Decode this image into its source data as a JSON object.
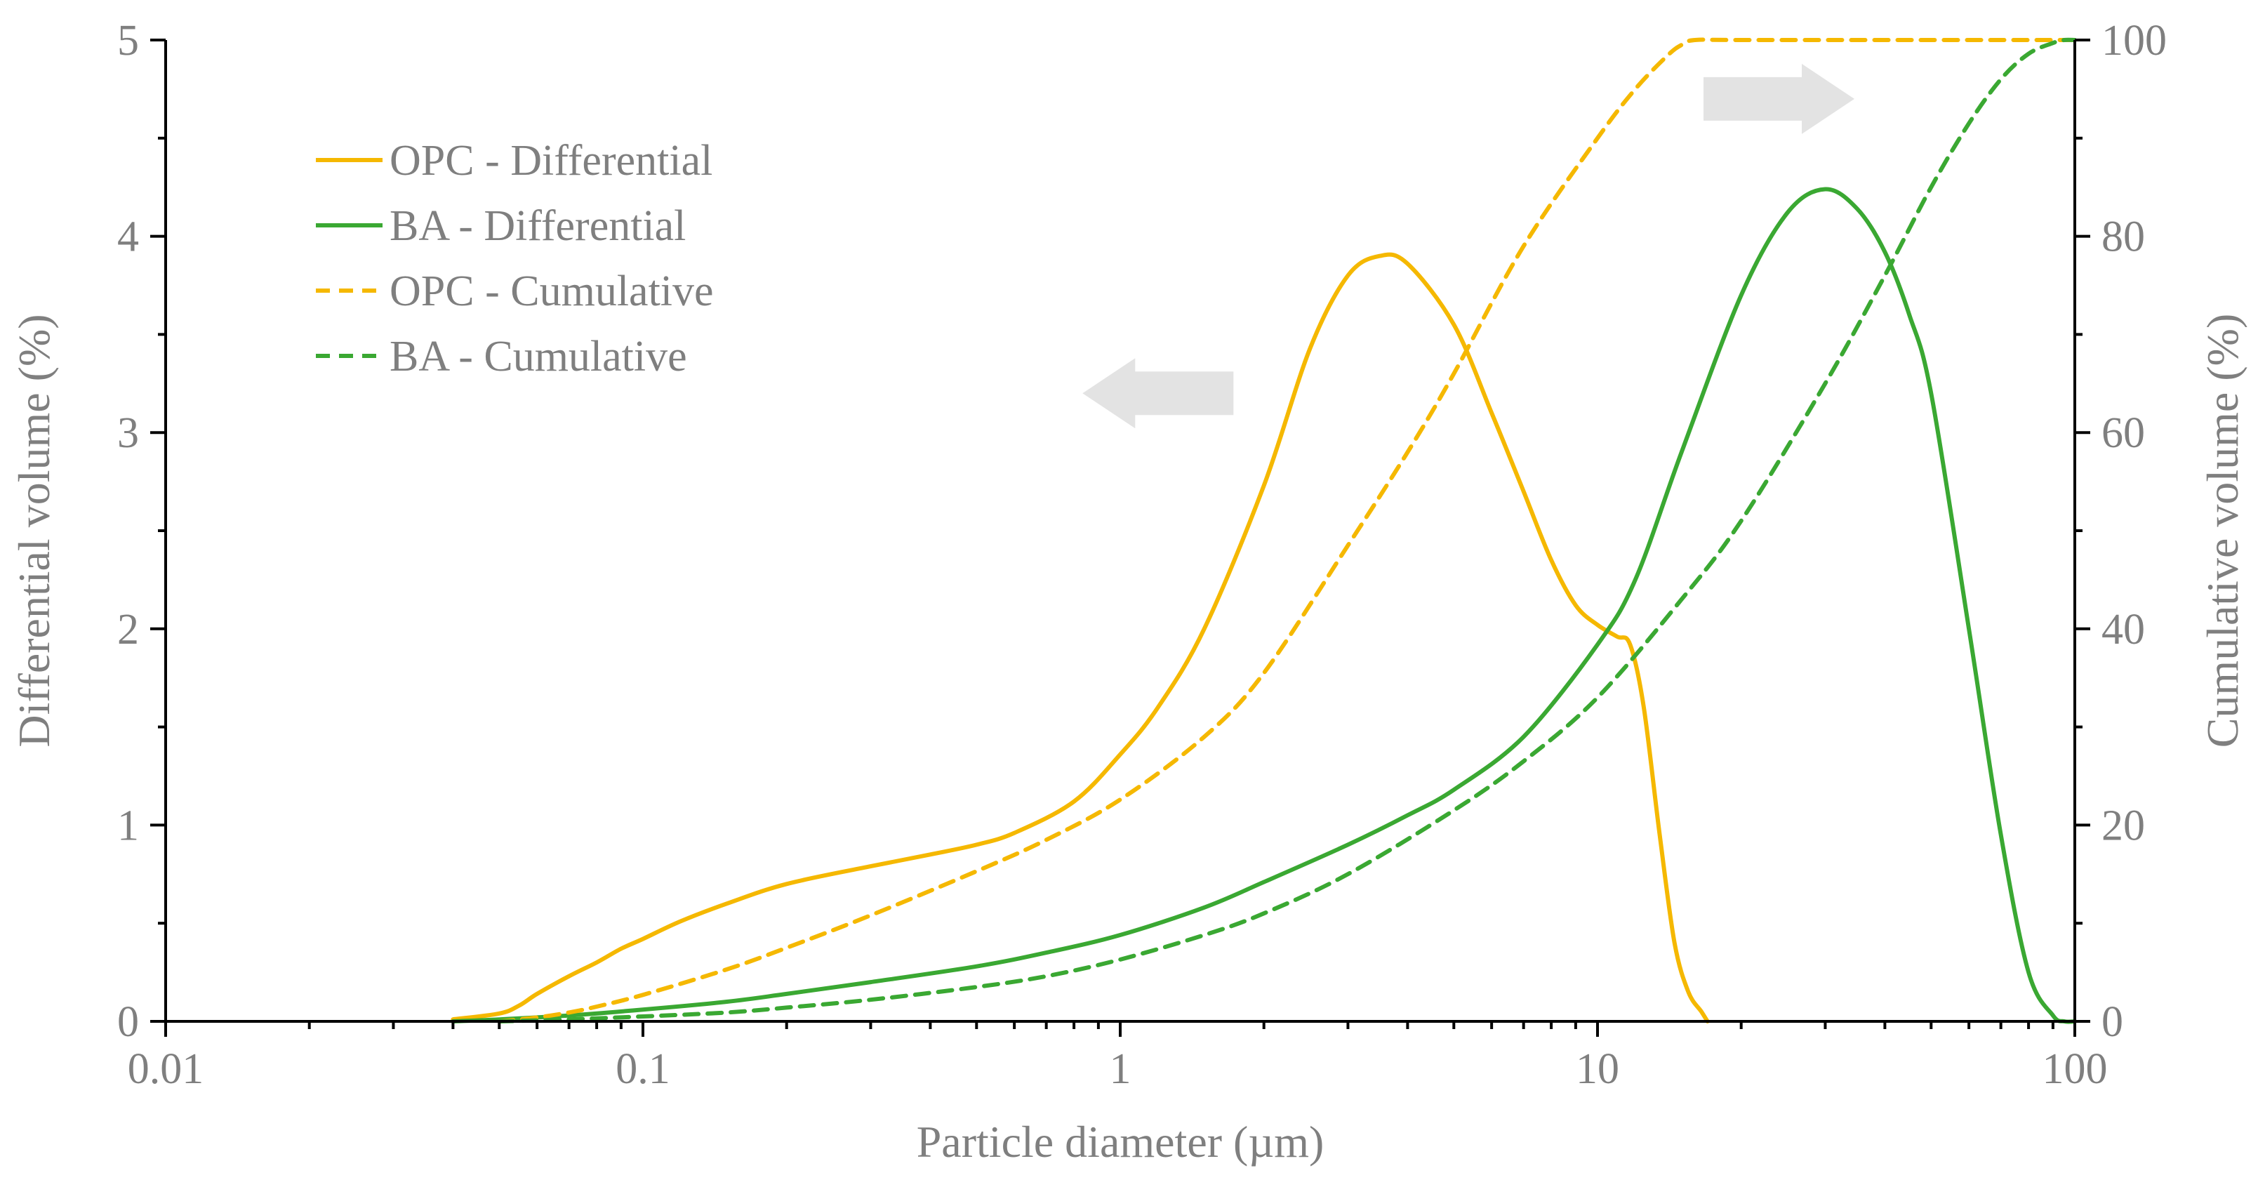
{
  "chart_data": {
    "type": "line",
    "xscale": "log",
    "xlabel": "Particle diameter (µm)",
    "ylabel": "Differential volume (%)",
    "y2label": "Cumulative volume (%)",
    "xlim": [
      0.01,
      100
    ],
    "ylim": [
      0,
      5
    ],
    "y2lim": [
      0,
      100
    ],
    "xticks": [
      0.01,
      0.1,
      1,
      10,
      100
    ],
    "xtick_labels": [
      "0.01",
      "0.1",
      "1",
      "10",
      "100"
    ],
    "yticks": [
      0,
      1,
      2,
      3,
      4,
      5
    ],
    "ytick_labels": [
      "0",
      "1",
      "2",
      "3",
      "4",
      "5"
    ],
    "y2ticks": [
      0,
      20,
      40,
      60,
      80,
      100
    ],
    "y2tick_labels": [
      "0",
      "20",
      "40",
      "60",
      "80",
      "100"
    ],
    "legend_position": "top-left",
    "colors": {
      "opc": "#f5b800",
      "ba": "#3aa832",
      "axis": "#000000",
      "text": "#7f7f7f",
      "arrow": "#e3e3e3"
    },
    "annotations": [
      {
        "type": "arrow",
        "direction": "left",
        "meaning": "differential curves read on left axis",
        "x": 1.2,
        "y": 3.2
      },
      {
        "type": "arrow",
        "direction": "right",
        "meaning": "cumulative curves read on right axis",
        "x": 24,
        "y": 4.7
      }
    ],
    "series": [
      {
        "name": "OPC - Differential",
        "axis": "left",
        "style": "solid",
        "color": "#f5b800",
        "x": [
          0.04,
          0.05,
          0.055,
          0.06,
          0.07,
          0.08,
          0.09,
          0.1,
          0.12,
          0.15,
          0.2,
          0.3,
          0.4,
          0.5,
          0.6,
          0.8,
          1.0,
          1.2,
          1.5,
          2.0,
          2.5,
          3.0,
          3.5,
          4.0,
          5.0,
          6.0,
          7.0,
          8.0,
          9.0,
          10.0,
          11.0,
          11.7,
          12.5,
          13.5,
          14.5,
          15.5,
          16.5,
          17.0
        ],
        "values": [
          0.01,
          0.04,
          0.08,
          0.14,
          0.23,
          0.3,
          0.37,
          0.42,
          0.51,
          0.6,
          0.7,
          0.79,
          0.85,
          0.9,
          0.96,
          1.12,
          1.36,
          1.6,
          2.0,
          2.73,
          3.43,
          3.8,
          3.9,
          3.86,
          3.55,
          3.1,
          2.7,
          2.35,
          2.12,
          2.02,
          1.96,
          1.92,
          1.6,
          0.95,
          0.4,
          0.15,
          0.05,
          0.0
        ]
      },
      {
        "name": "BA - Differential",
        "axis": "left",
        "style": "solid",
        "color": "#3aa832",
        "x": [
          0.04,
          0.05,
          0.07,
          0.1,
          0.15,
          0.2,
          0.3,
          0.5,
          0.7,
          1.0,
          1.5,
          2.0,
          3.0,
          4.0,
          5.0,
          7.0,
          10.0,
          12.0,
          15.0,
          20.0,
          25.0,
          30.0,
          35.0,
          40.0,
          45.0,
          50.0,
          60.0,
          70.0,
          80.0,
          90.0,
          95.0,
          100.0
        ],
        "values": [
          0.0,
          0.01,
          0.03,
          0.06,
          0.1,
          0.14,
          0.2,
          0.28,
          0.35,
          0.44,
          0.58,
          0.71,
          0.9,
          1.05,
          1.18,
          1.45,
          1.92,
          2.25,
          2.9,
          3.7,
          4.12,
          4.24,
          4.14,
          3.92,
          3.6,
          3.2,
          2.0,
          0.95,
          0.25,
          0.03,
          0.0,
          0.0
        ]
      },
      {
        "name": "OPC - Cumulative",
        "axis": "right",
        "style": "dashed",
        "color": "#f5b800",
        "x": [
          0.05,
          0.06,
          0.07,
          0.08,
          0.1,
          0.15,
          0.2,
          0.3,
          0.5,
          0.7,
          1.0,
          1.5,
          2.0,
          3.0,
          4.0,
          5.0,
          7.0,
          10.0,
          12.0,
          14.0,
          15.0,
          16.0,
          20.0,
          50.0,
          100.0
        ],
        "values": [
          0.0,
          0.4,
          0.9,
          1.5,
          2.7,
          5.3,
          7.5,
          10.8,
          15.3,
          18.5,
          22.6,
          29.0,
          35.5,
          48.5,
          58.0,
          66.0,
          79.0,
          90.0,
          95.0,
          98.4,
          99.5,
          100.0,
          100.0,
          100.0,
          100.0
        ]
      },
      {
        "name": "BA - Cumulative",
        "axis": "right",
        "style": "dashed",
        "color": "#3aa832",
        "x": [
          0.05,
          0.07,
          0.1,
          0.15,
          0.2,
          0.3,
          0.5,
          0.7,
          1.0,
          1.5,
          2.0,
          3.0,
          5.0,
          7.0,
          10.0,
          15.0,
          20.0,
          30.0,
          40.0,
          50.0,
          60.0,
          70.0,
          80.0,
          90.0,
          95.0,
          100.0
        ],
        "values": [
          0.0,
          0.2,
          0.5,
          0.9,
          1.4,
          2.2,
          3.5,
          4.6,
          6.3,
          8.8,
          11.0,
          15.0,
          21.5,
          26.5,
          33.0,
          43.0,
          51.0,
          65.0,
          76.0,
          85.0,
          91.5,
          96.0,
          98.6,
          99.7,
          100.0,
          100.0
        ]
      }
    ]
  }
}
